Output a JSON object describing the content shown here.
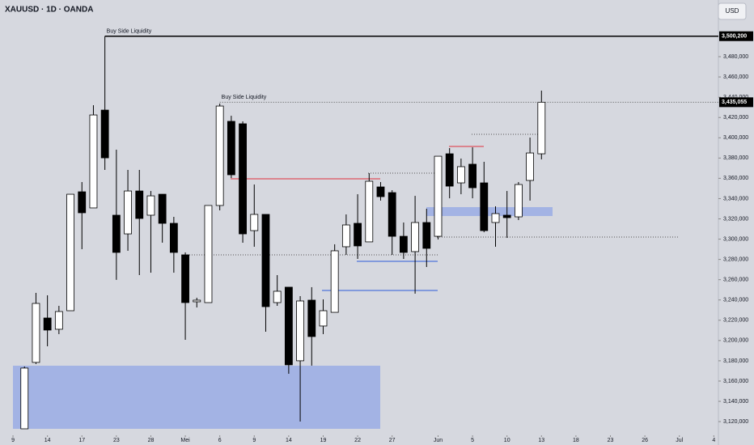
{
  "chart_data": {
    "type": "candlestick",
    "title": "XAUUSD · 1D · OANDA",
    "currency": "USD",
    "up_color": "#ffffff",
    "down_color": "#000000",
    "x": [
      1,
      2,
      3,
      4,
      5,
      6,
      7,
      8,
      9,
      10,
      11,
      12,
      13,
      14,
      15,
      16,
      17,
      18,
      19,
      20,
      21,
      22,
      23,
      24,
      25,
      26,
      27,
      28,
      29,
      30,
      31,
      32,
      33,
      34,
      35,
      36,
      37,
      38,
      39,
      40,
      41,
      42,
      43,
      44,
      45,
      46
    ],
    "open": [
      3112900,
      3178400,
      3222200,
      3211100,
      3229400,
      3346700,
      3330800,
      3427300,
      3323600,
      3305200,
      3347500,
      3323600,
      3344300,
      3315600,
      3284500,
      3238200,
      3237400,
      3333200,
      3416200,
      3413800,
      3308400,
      3324400,
      3237400,
      3252600,
      3180000,
      3239800,
      3214300,
      3227800,
      3292500,
      3315600,
      3297300,
      3351500,
      3345900,
      3302800,
      3287700,
      3316400,
      3302800,
      3384200,
      3355500,
      3373900,
      3355500,
      3316400,
      3323600,
      3322000,
      3357900,
      3384200
    ],
    "high": [
      3174400,
      3247000,
      3244600,
      3234200,
      3344300,
      3356300,
      3432100,
      3500200,
      3388200,
      3368300,
      3368300,
      3347500,
      3344300,
      3322000,
      3286900,
      3242200,
      3333200,
      3433700,
      3421700,
      3416200,
      3353900,
      3324400,
      3264500,
      3252600,
      3243800,
      3252600,
      3240600,
      3294900,
      3324400,
      3344300,
      3365100,
      3356300,
      3348300,
      3316400,
      3342700,
      3330000,
      3381800,
      3389800,
      3379500,
      3390600,
      3376300,
      3332400,
      3347500,
      3356300,
      3400200,
      3446500
    ],
    "low": [
      3112900,
      3176800,
      3194300,
      3206300,
      3229400,
      3290100,
      3330800,
      3368300,
      3259800,
      3288500,
      3264500,
      3266900,
      3296500,
      3266900,
      3200700,
      3232600,
      3237400,
      3328400,
      3360300,
      3296500,
      3292500,
      3208700,
      3234200,
      3167200,
      3120100,
      3175200,
      3206300,
      3227800,
      3284500,
      3280500,
      3297300,
      3338000,
      3284500,
      3280500,
      3246200,
      3272500,
      3299700,
      3340300,
      3344300,
      3340300,
      3306800,
      3292500,
      3301200,
      3318800,
      3338000,
      3378700
    ],
    "close": [
      3172800,
      3236600,
      3210300,
      3228600,
      3344300,
      3326000,
      3422500,
      3380200,
      3286900,
      3347500,
      3320400,
      3342700,
      3315600,
      3286900,
      3237400,
      3239800,
      3333200,
      3431300,
      3363500,
      3305200,
      3324400,
      3233400,
      3248600,
      3176000,
      3239000,
      3203900,
      3229400,
      3288500,
      3314000,
      3293300,
      3357100,
      3341900,
      3302800,
      3286900,
      3316400,
      3290900,
      3381800,
      3352300,
      3371500,
      3350700,
      3308400,
      3325200,
      3321200,
      3353900,
      3385000,
      3435055
    ],
    "xlim": [
      -1.13,
      61.4
    ],
    "xticks": [
      {
        "value": 0,
        "label": "9"
      },
      {
        "value": 3,
        "label": "14"
      },
      {
        "value": 6,
        "label": "17"
      },
      {
        "value": 9,
        "label": "23"
      },
      {
        "value": 12,
        "label": "28"
      },
      {
        "value": 15,
        "label": "Mei"
      },
      {
        "value": 18,
        "label": "6"
      },
      {
        "value": 21,
        "label": "9"
      },
      {
        "value": 24,
        "label": "14"
      },
      {
        "value": 27,
        "label": "19"
      },
      {
        "value": 30,
        "label": "22"
      },
      {
        "value": 33,
        "label": "27"
      },
      {
        "value": 37,
        "label": "Jun"
      },
      {
        "value": 40,
        "label": "5"
      },
      {
        "value": 43,
        "label": "10"
      },
      {
        "value": 46,
        "label": "13"
      },
      {
        "value": 49,
        "label": "18"
      },
      {
        "value": 52,
        "label": "23"
      },
      {
        "value": 55,
        "label": "26"
      },
      {
        "value": 58,
        "label": "Jul"
      },
      {
        "value": 61,
        "label": "4"
      }
    ],
    "ylim": [
      3106500,
      3535900
    ],
    "yticks": [
      {
        "value": 3120000,
        "label": "3,120,000"
      },
      {
        "value": 3140000,
        "label": "3,140,000"
      },
      {
        "value": 3160000,
        "label": "3,160,000"
      },
      {
        "value": 3180000,
        "label": "3,180,000"
      },
      {
        "value": 3200000,
        "label": "3,200,000"
      },
      {
        "value": 3220000,
        "label": "3,220,000"
      },
      {
        "value": 3240000,
        "label": "3,240,000"
      },
      {
        "value": 3260000,
        "label": "3,260,000"
      },
      {
        "value": 3280000,
        "label": "3,280,000"
      },
      {
        "value": 3300000,
        "label": "3,300,000"
      },
      {
        "value": 3320000,
        "label": "3,320,000"
      },
      {
        "value": 3340000,
        "label": "3,340,000"
      },
      {
        "value": 3360000,
        "label": "3,360,000"
      },
      {
        "value": 3380000,
        "label": "3,380,000"
      },
      {
        "value": 3400000,
        "label": "3,400,000"
      },
      {
        "value": 3420000,
        "label": "3,420,000"
      },
      {
        "value": 3440000,
        "label": "3,440,000"
      },
      {
        "value": 3460000,
        "label": "3,460,000"
      },
      {
        "value": 3480000,
        "label": "3,480,000"
      }
    ],
    "levels": [
      {
        "value": 3500200,
        "label": "3,500,200",
        "text": "Buy Side Liquidity",
        "start": 8,
        "style": "solid"
      },
      {
        "value": 3435055,
        "label": "3,435,055",
        "text": "Buy Side Liquidity",
        "start": 18,
        "style": "dotted"
      }
    ]
  }
}
